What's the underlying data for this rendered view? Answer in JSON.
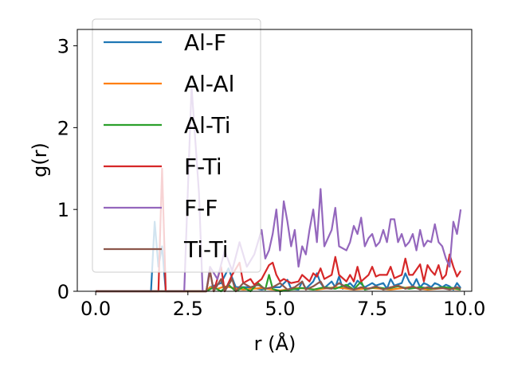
{
  "chart_data": {
    "type": "line",
    "title": "",
    "xlabel": "r (Å)",
    "ylabel": "g(r)",
    "xlim": [
      -0.5,
      10.2
    ],
    "ylim": [
      0,
      3.2
    ],
    "xticks": [
      0.0,
      2.5,
      5.0,
      7.5,
      10.0
    ],
    "xtick_labels": [
      "0.0",
      "2.5",
      "5.0",
      "7.5",
      "10.0"
    ],
    "yticks": [
      0,
      1,
      2,
      3
    ],
    "ytick_labels": [
      "0",
      "1",
      "2",
      "3"
    ],
    "grid": false,
    "legend_position": "top-left",
    "series": [
      {
        "name": "Al-F",
        "color": "#1f77b4",
        "points": [
          [
            0,
            0
          ],
          [
            1.5,
            0
          ],
          [
            1.6,
            0.85
          ],
          [
            1.7,
            0.3
          ],
          [
            1.8,
            0.55
          ],
          [
            1.9,
            0
          ],
          [
            2.5,
            0
          ],
          [
            3.0,
            0
          ],
          [
            3.1,
            0.05
          ],
          [
            3.4,
            0.1
          ],
          [
            3.6,
            0.28
          ],
          [
            3.8,
            0.05
          ],
          [
            4.0,
            0.05
          ],
          [
            4.2,
            0.05
          ],
          [
            4.5,
            0.02
          ],
          [
            4.8,
            0.05
          ],
          [
            5.0,
            0.05
          ],
          [
            5.2,
            0.14
          ],
          [
            5.3,
            0.03
          ],
          [
            5.5,
            0.02
          ],
          [
            5.6,
            0.12
          ],
          [
            5.7,
            0.03
          ],
          [
            5.9,
            0.12
          ],
          [
            6.0,
            0.22
          ],
          [
            6.1,
            0.1
          ],
          [
            6.2,
            0.04
          ],
          [
            6.4,
            0.12
          ],
          [
            6.5,
            0.05
          ],
          [
            6.6,
            0.18
          ],
          [
            6.7,
            0.03
          ],
          [
            6.9,
            0.1
          ],
          [
            7.0,
            0.05
          ],
          [
            7.1,
            0.13
          ],
          [
            7.3,
            0.05
          ],
          [
            7.5,
            0.1
          ],
          [
            7.6,
            0.07
          ],
          [
            7.8,
            0.1
          ],
          [
            7.9,
            0.03
          ],
          [
            8.0,
            0.15
          ],
          [
            8.1,
            0.07
          ],
          [
            8.3,
            0.1
          ],
          [
            8.4,
            0.22
          ],
          [
            8.5,
            0.12
          ],
          [
            8.6,
            0.06
          ],
          [
            8.7,
            0.15
          ],
          [
            8.8,
            0.05
          ],
          [
            8.9,
            0.1
          ],
          [
            9.0,
            0.08
          ],
          [
            9.1,
            0.05
          ],
          [
            9.2,
            0.1
          ],
          [
            9.3,
            0.08
          ],
          [
            9.4,
            0.05
          ],
          [
            9.5,
            0.08
          ],
          [
            9.6,
            0.06
          ],
          [
            9.7,
            0.02
          ],
          [
            9.8,
            0.1
          ],
          [
            9.9,
            0.04
          ]
        ]
      },
      {
        "name": "Al-Al",
        "color": "#ff7f0e",
        "points": [
          [
            0,
            0
          ],
          [
            3.0,
            0
          ],
          [
            3.1,
            0.05
          ],
          [
            3.3,
            0.03
          ],
          [
            3.5,
            0.06
          ],
          [
            4.0,
            0.02
          ],
          [
            4.5,
            0.04
          ],
          [
            5.0,
            0.01
          ],
          [
            5.5,
            0.04
          ],
          [
            6.0,
            0.02
          ],
          [
            6.5,
            0.05
          ],
          [
            7.0,
            0.02
          ],
          [
            7.5,
            0.04
          ],
          [
            8.0,
            0.02
          ],
          [
            8.5,
            0.05
          ],
          [
            9.0,
            0.02
          ],
          [
            9.5,
            0.04
          ],
          [
            9.9,
            0.02
          ]
        ]
      },
      {
        "name": "Al-Ti",
        "color": "#2ca02c",
        "points": [
          [
            0,
            0
          ],
          [
            3.0,
            0
          ],
          [
            3.2,
            0.05
          ],
          [
            3.4,
            0
          ],
          [
            3.6,
            0.08
          ],
          [
            3.8,
            0
          ],
          [
            4.0,
            0.05
          ],
          [
            4.2,
            0
          ],
          [
            4.4,
            0.1
          ],
          [
            4.6,
            0.02
          ],
          [
            4.7,
            0.2
          ],
          [
            4.8,
            0.03
          ],
          [
            5.0,
            0
          ],
          [
            5.3,
            0.02
          ],
          [
            5.6,
            0.04
          ],
          [
            5.9,
            0.02
          ],
          [
            6.2,
            0.05
          ],
          [
            6.5,
            0.03
          ],
          [
            6.8,
            0.08
          ],
          [
            7.0,
            0.02
          ],
          [
            7.2,
            0.12
          ],
          [
            7.3,
            0.02
          ],
          [
            7.6,
            0.05
          ],
          [
            7.9,
            0.03
          ],
          [
            8.2,
            0.06
          ],
          [
            8.5,
            0.03
          ],
          [
            8.8,
            0.05
          ],
          [
            9.1,
            0.03
          ],
          [
            9.4,
            0.05
          ],
          [
            9.7,
            0.04
          ],
          [
            9.9,
            0.02
          ]
        ]
      },
      {
        "name": "F-Ti",
        "color": "#d62728",
        "points": [
          [
            0,
            0
          ],
          [
            1.7,
            0
          ],
          [
            1.8,
            1.5
          ],
          [
            1.9,
            0
          ],
          [
            2.0,
            0
          ],
          [
            3.0,
            0
          ],
          [
            3.1,
            0.25
          ],
          [
            3.2,
            0
          ],
          [
            3.4,
            0.3
          ],
          [
            3.5,
            0
          ],
          [
            3.7,
            0.2
          ],
          [
            3.9,
            0.35
          ],
          [
            4.0,
            0.1
          ],
          [
            4.2,
            0.15
          ],
          [
            4.3,
            0.08
          ],
          [
            4.5,
            0.15
          ],
          [
            4.7,
            0.32
          ],
          [
            4.8,
            0.35
          ],
          [
            4.9,
            0.2
          ],
          [
            5.0,
            0.12
          ],
          [
            5.1,
            0.15
          ],
          [
            5.3,
            0.1
          ],
          [
            5.5,
            0.12
          ],
          [
            5.6,
            0.2
          ],
          [
            5.8,
            0.12
          ],
          [
            5.9,
            0.22
          ],
          [
            6.0,
            0.18
          ],
          [
            6.1,
            0.28
          ],
          [
            6.2,
            0.15
          ],
          [
            6.4,
            0.2
          ],
          [
            6.5,
            0.42
          ],
          [
            6.6,
            0.2
          ],
          [
            6.8,
            0.12
          ],
          [
            6.9,
            0.2
          ],
          [
            7.0,
            0.12
          ],
          [
            7.1,
            0.3
          ],
          [
            7.2,
            0.12
          ],
          [
            7.4,
            0.2
          ],
          [
            7.5,
            0.3
          ],
          [
            7.6,
            0.18
          ],
          [
            7.7,
            0.2
          ],
          [
            7.9,
            0.2
          ],
          [
            8.0,
            0.3
          ],
          [
            8.1,
            0.16
          ],
          [
            8.3,
            0.2
          ],
          [
            8.4,
            0.4
          ],
          [
            8.5,
            0.2
          ],
          [
            8.6,
            0.2
          ],
          [
            8.8,
            0.33
          ],
          [
            8.9,
            0.12
          ],
          [
            9.0,
            0.32
          ],
          [
            9.1,
            0.25
          ],
          [
            9.2,
            0.2
          ],
          [
            9.3,
            0.32
          ],
          [
            9.4,
            0.15
          ],
          [
            9.5,
            0.2
          ],
          [
            9.6,
            0.45
          ],
          [
            9.7,
            0.3
          ],
          [
            9.8,
            0.18
          ],
          [
            9.9,
            0.25
          ]
        ]
      },
      {
        "name": "F-F",
        "color": "#9467bd",
        "points": [
          [
            0,
            0
          ],
          [
            2.4,
            0
          ],
          [
            2.6,
            2.5
          ],
          [
            2.8,
            1.2
          ],
          [
            2.9,
            0
          ],
          [
            3.0,
            0
          ],
          [
            3.1,
            0.3
          ],
          [
            3.3,
            0.15
          ],
          [
            3.5,
            0.5
          ],
          [
            3.7,
            0.25
          ],
          [
            3.9,
            0.6
          ],
          [
            4.1,
            0.3
          ],
          [
            4.3,
            0.45
          ],
          [
            4.5,
            0.75
          ],
          [
            4.6,
            0.4
          ],
          [
            4.7,
            0.5
          ],
          [
            4.8,
            0.7
          ],
          [
            4.9,
            1.0
          ],
          [
            5.0,
            0.5
          ],
          [
            5.1,
            1.1
          ],
          [
            5.2,
            0.85
          ],
          [
            5.3,
            0.55
          ],
          [
            5.4,
            0.75
          ],
          [
            5.5,
            0.3
          ],
          [
            5.6,
            0.55
          ],
          [
            5.7,
            0.45
          ],
          [
            5.8,
            0.75
          ],
          [
            5.9,
            1.0
          ],
          [
            6.0,
            0.6
          ],
          [
            6.1,
            1.25
          ],
          [
            6.2,
            0.55
          ],
          [
            6.3,
            0.65
          ],
          [
            6.4,
            0.75
          ],
          [
            6.5,
            1.02
          ],
          [
            6.6,
            0.55
          ],
          [
            6.8,
            0.5
          ],
          [
            6.9,
            0.6
          ],
          [
            7.0,
            0.8
          ],
          [
            7.1,
            0.7
          ],
          [
            7.2,
            0.9
          ],
          [
            7.3,
            0.55
          ],
          [
            7.4,
            0.65
          ],
          [
            7.5,
            0.7
          ],
          [
            7.6,
            0.55
          ],
          [
            7.7,
            0.6
          ],
          [
            7.8,
            0.75
          ],
          [
            7.9,
            0.6
          ],
          [
            8.0,
            0.88
          ],
          [
            8.1,
            0.88
          ],
          [
            8.2,
            0.6
          ],
          [
            8.3,
            0.7
          ],
          [
            8.4,
            0.55
          ],
          [
            8.5,
            0.6
          ],
          [
            8.6,
            0.7
          ],
          [
            8.7,
            0.5
          ],
          [
            8.8,
            0.75
          ],
          [
            8.9,
            0.55
          ],
          [
            9.0,
            0.62
          ],
          [
            9.1,
            0.6
          ],
          [
            9.2,
            0.82
          ],
          [
            9.3,
            0.6
          ],
          [
            9.4,
            0.55
          ],
          [
            9.5,
            0.4
          ],
          [
            9.6,
            0.3
          ],
          [
            9.7,
            0.85
          ],
          [
            9.8,
            0.7
          ],
          [
            9.9,
            1.0
          ]
        ]
      },
      {
        "name": "Ti-Ti",
        "color": "#8c564b",
        "points": [
          [
            0,
            0
          ],
          [
            3.0,
            0
          ],
          [
            3.1,
            0.25
          ],
          [
            3.2,
            0
          ],
          [
            3.4,
            0.15
          ],
          [
            3.5,
            0
          ],
          [
            3.7,
            0.15
          ],
          [
            3.8,
            0
          ],
          [
            4.0,
            0.1
          ],
          [
            4.2,
            0.05
          ],
          [
            4.4,
            0.08
          ],
          [
            4.6,
            0.03
          ],
          [
            4.8,
            0.05
          ],
          [
            5.0,
            0.1
          ],
          [
            5.2,
            0.02
          ],
          [
            5.4,
            0.05
          ],
          [
            5.6,
            0.12
          ],
          [
            5.7,
            0.02
          ],
          [
            5.9,
            0.06
          ],
          [
            6.1,
            0.12
          ],
          [
            6.2,
            0.04
          ],
          [
            6.4,
            0.03
          ],
          [
            6.6,
            0.1
          ],
          [
            6.8,
            0.05
          ],
          [
            7.0,
            0.02
          ],
          [
            7.2,
            0.05
          ],
          [
            7.4,
            0.03
          ],
          [
            7.6,
            0.06
          ],
          [
            7.8,
            0.02
          ],
          [
            8.0,
            0.05
          ],
          [
            8.2,
            0.07
          ],
          [
            8.4,
            0.03
          ],
          [
            8.6,
            0.06
          ],
          [
            8.8,
            0.02
          ],
          [
            9.0,
            0.05
          ],
          [
            9.2,
            0.03
          ],
          [
            9.4,
            0.04
          ],
          [
            9.6,
            0.02
          ],
          [
            9.8,
            0.05
          ],
          [
            9.9,
            0.03
          ]
        ]
      }
    ]
  }
}
